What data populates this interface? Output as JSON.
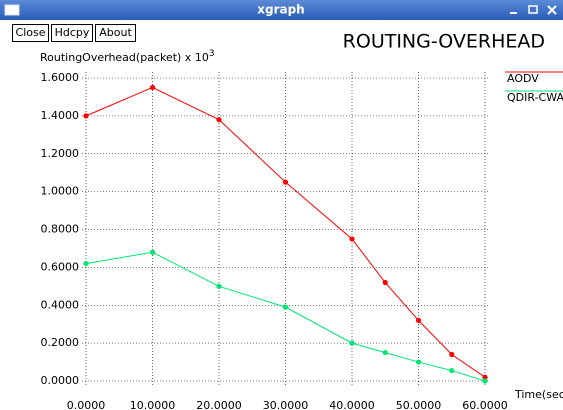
{
  "window": {
    "title": "xgraph",
    "buttons": [
      "Close",
      "Hdcpy",
      "About"
    ]
  },
  "chart_data": {
    "type": "line",
    "title": "ROUTING-OVERHEAD",
    "y_label": "RoutingOverhead(packet) x 10",
    "y_label_exponent": "3",
    "x_label": "Time(sec",
    "x": [
      0,
      10,
      20,
      30,
      40,
      45,
      50,
      55,
      60
    ],
    "series": [
      {
        "name": "AODV",
        "color": "#ff0000",
        "values": [
          1.4,
          1.55,
          1.38,
          1.05,
          0.75,
          0.52,
          0.32,
          0.14,
          0.02
        ]
      },
      {
        "name": "QDIR-CWA",
        "color": "#00e673",
        "values": [
          0.62,
          0.68,
          0.5,
          0.39,
          0.2,
          0.15,
          0.1,
          0.055,
          0.0
        ]
      }
    ],
    "xlim": [
      0,
      60
    ],
    "xticks": [
      {
        "value": 0,
        "label": "0.0000"
      },
      {
        "value": 10,
        "label": "10.0000"
      },
      {
        "value": 20,
        "label": "20.0000"
      },
      {
        "value": 30,
        "label": "30.0000"
      },
      {
        "value": 40,
        "label": "40.0000"
      },
      {
        "value": 50,
        "label": "50.0000"
      },
      {
        "value": 60,
        "label": "60.0000"
      }
    ],
    "ylim": [
      0,
      1.6
    ],
    "yticks": [
      {
        "value": 0,
        "label": "0.0000"
      },
      {
        "value": 0.2,
        "label": "0.2000"
      },
      {
        "value": 0.4,
        "label": "0.4000"
      },
      {
        "value": 0.6,
        "label": "0.6000"
      },
      {
        "value": 0.8,
        "label": "0.8000"
      },
      {
        "value": 1.0,
        "label": "1.0000"
      },
      {
        "value": 1.2,
        "label": "1.2000"
      },
      {
        "value": 1.4,
        "label": "1.4000"
      },
      {
        "value": 1.6,
        "label": "1.6000"
      }
    ],
    "grid": true
  }
}
